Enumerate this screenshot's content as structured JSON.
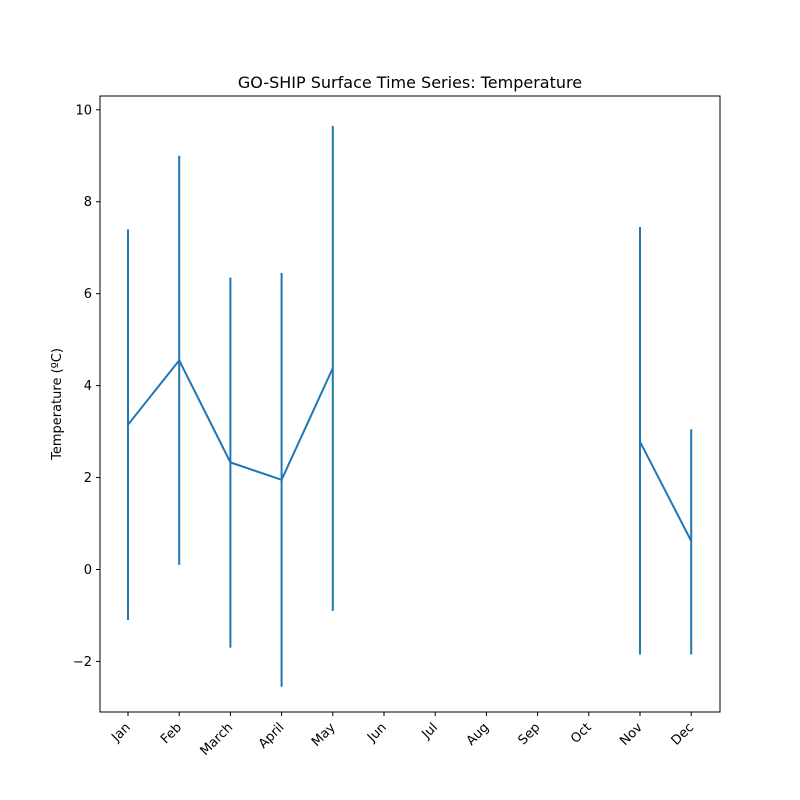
{
  "chart_data": {
    "type": "line",
    "title": "GO-SHIP Surface Time Series: Temperature",
    "xlabel": "",
    "ylabel": "Temperature (ºC)",
    "categories": [
      "Jan",
      "Feb",
      "March",
      "April",
      "May",
      "Jun",
      "Jul",
      "Aug",
      "Sep",
      "Oct",
      "Nov",
      "Dec"
    ],
    "series": [
      {
        "values": [
          3.15,
          4.55,
          2.33,
          1.95,
          4.38,
          null,
          null,
          null,
          null,
          null,
          2.78,
          0.62
        ],
        "error_low": [
          -1.1,
          0.1,
          -1.7,
          -2.55,
          -0.9,
          null,
          null,
          null,
          null,
          null,
          -1.85,
          -1.85
        ],
        "error_high": [
          7.4,
          9.0,
          6.35,
          6.45,
          9.65,
          null,
          null,
          null,
          null,
          null,
          7.45,
          3.05
        ],
        "color": "#1f77b4"
      }
    ],
    "ylim": [
      -3.1,
      10.3
    ],
    "yticks": [
      -2,
      0,
      2,
      4,
      6,
      8,
      10
    ],
    "ytick_labels": [
      "−2",
      "0",
      "2",
      "4",
      "6",
      "8",
      "10"
    ],
    "grid": false,
    "legend": "none",
    "xtick_rotation": 45
  }
}
